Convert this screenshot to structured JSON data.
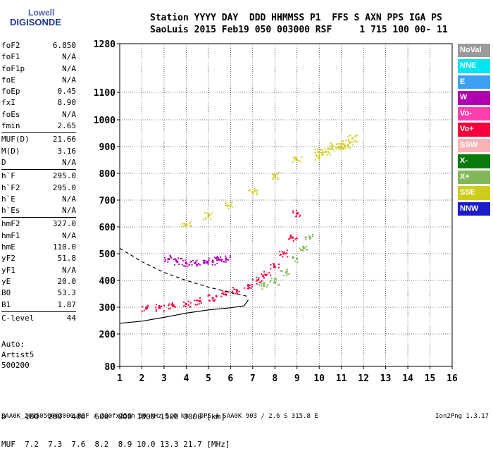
{
  "logo": {
    "line1": "Lowell",
    "line2": "DIGISONDE"
  },
  "header": {
    "line1": "Station YYYY DAY  DDD HHMMSS P1  FFS S AXN PPS IGA PS",
    "line2": "SaoLuis 2015 Feb19 050 003000 RSF     1 715 100 00- 11"
  },
  "params_groups": [
    [
      {
        "label": "foF2",
        "value": "6.850"
      },
      {
        "label": "foF1",
        "value": "N/A"
      },
      {
        "label": "foF1p",
        "value": "N/A"
      },
      {
        "label": "foE",
        "value": "N/A"
      },
      {
        "label": "foEp",
        "value": "0.45"
      },
      {
        "label": "fxI",
        "value": "8.90"
      },
      {
        "label": "foEs",
        "value": "N/A"
      },
      {
        "label": "fmin",
        "value": "2.65"
      }
    ],
    [
      {
        "label": "MUF(D)",
        "value": "21.66"
      },
      {
        "label": "M(D)",
        "value": "3.16"
      },
      {
        "label": "D",
        "value": "N/A"
      }
    ],
    [
      {
        "label": "h`F",
        "value": "295.0"
      },
      {
        "label": "h`F2",
        "value": "295.0"
      },
      {
        "label": "h`E",
        "value": "N/A"
      },
      {
        "label": "h`Es",
        "value": "N/A"
      }
    ],
    [
      {
        "label": "hmF2",
        "value": "327.0"
      },
      {
        "label": "hmF1",
        "value": "N/A"
      },
      {
        "label": "hmE",
        "value": "110.0"
      },
      {
        "label": "yF2",
        "value": "51.8"
      },
      {
        "label": "yF1",
        "value": "N/A"
      },
      {
        "label": "yE",
        "value": "20.0"
      },
      {
        "label": "B0",
        "value": "53.3"
      },
      {
        "label": "B1",
        "value": "1.87"
      }
    ],
    [
      {
        "label": "C-level",
        "value": "44"
      }
    ]
  ],
  "auto_block": [
    "Auto:",
    "Artist5",
    "500200"
  ],
  "legend": [
    {
      "label": "NoVal",
      "color": "#9a9a9a"
    },
    {
      "label": "NNE",
      "color": "#00e5f0"
    },
    {
      "label": "E",
      "color": "#3ca0f5"
    },
    {
      "label": "W",
      "color": "#b000b0"
    },
    {
      "label": "Vo-",
      "color": "#ff3fb0"
    },
    {
      "label": "Vo+",
      "color": "#f5003c"
    },
    {
      "label": "SSW",
      "color": "#f8b4b4"
    },
    {
      "label": "X-",
      "color": "#0a7a0a"
    },
    {
      "label": "X+",
      "color": "#82b85a"
    },
    {
      "label": "SSE",
      "color": "#cdcd1e"
    },
    {
      "label": "NNW",
      "color": "#1c1cc8"
    }
  ],
  "muf_table": {
    "line1": "D    100  200  400  600  800 1000 1500 3000 [km]",
    "line2": "MUF  7.2  7.3  7.6  8.2  8.9 10.0 13.3 21.7 [MHz]"
  },
  "footer": "SAA0K_2015050003000.RSF / 300fx256h 50 kHz 5.0 km / DPS-4 SAA0K 903 / 2.6 S 315.8 E",
  "version": "Ion2Png 1.3.17",
  "chart_data": {
    "type": "scatter",
    "title": "",
    "xlabel": "",
    "ylabel": "",
    "xlim": [
      1,
      16
    ],
    "ylim": [
      80,
      1280
    ],
    "x_ticks": [
      1,
      2,
      3,
      4,
      5,
      6,
      7,
      8,
      9,
      10,
      11,
      12,
      13,
      14,
      15,
      16
    ],
    "y_ticks": [
      80,
      200,
      300,
      400,
      500,
      600,
      700,
      800,
      900,
      1000,
      1100,
      1280
    ],
    "y_scale": "log-like",
    "grid": true,
    "series": [
      {
        "name": "O-trace F2",
        "type": "points",
        "color": "#f5003c",
        "x": [
          2.2,
          2.8,
          3.4,
          4.0,
          4.6,
          5.2,
          5.8,
          6.3,
          6.8,
          7.2,
          7.6,
          8.0,
          8.4,
          8.8,
          9.0
        ],
        "y": [
          295,
          298,
          305,
          312,
          322,
          333,
          347,
          362,
          382,
          400,
          420,
          450,
          500,
          560,
          650
        ]
      },
      {
        "name": "X-trace F2",
        "type": "points",
        "color": "#82b85a",
        "x": [
          7.5,
          8.0,
          8.5,
          9.0,
          9.3,
          9.6
        ],
        "y": [
          380,
          395,
          430,
          480,
          520,
          560
        ]
      },
      {
        "name": "2F trace",
        "type": "points",
        "color": "#cdcd1e",
        "x": [
          4.0,
          5.0,
          6.0,
          7.0,
          8.0,
          9.0,
          10.0,
          11.0,
          11.5
        ],
        "y": [
          610,
          640,
          680,
          730,
          790,
          850,
          880,
          900,
          930
        ]
      },
      {
        "name": "Spread F",
        "type": "points",
        "color": "#b000b0",
        "x": [
          3.2,
          3.6,
          4.0,
          4.4,
          4.8,
          5.2,
          5.5,
          5.8
        ],
        "y": [
          480,
          470,
          465,
          465,
          466,
          470,
          478,
          482
        ]
      },
      {
        "name": "High-frequency cluster",
        "type": "points",
        "color": "#cdcd1e",
        "x": [
          10.0,
          10.3,
          10.6,
          11.0,
          11.3
        ],
        "y": [
          860,
          880,
          900,
          910,
          905
        ]
      },
      {
        "name": "Profile",
        "type": "line",
        "color": "#000000",
        "x": [
          1.0,
          2.0,
          3.0,
          4.0,
          5.0,
          6.0,
          6.6,
          6.7,
          6.8
        ],
        "y": [
          240,
          248,
          262,
          278,
          290,
          298,
          305,
          315,
          328
        ]
      },
      {
        "name": "Model",
        "type": "dashed",
        "color": "#000000",
        "x": [
          1.0,
          2.0,
          3.0,
          4.0,
          5.0,
          6.0,
          6.8
        ],
        "y": [
          520,
          470,
          430,
          400,
          375,
          355,
          340
        ]
      }
    ]
  }
}
